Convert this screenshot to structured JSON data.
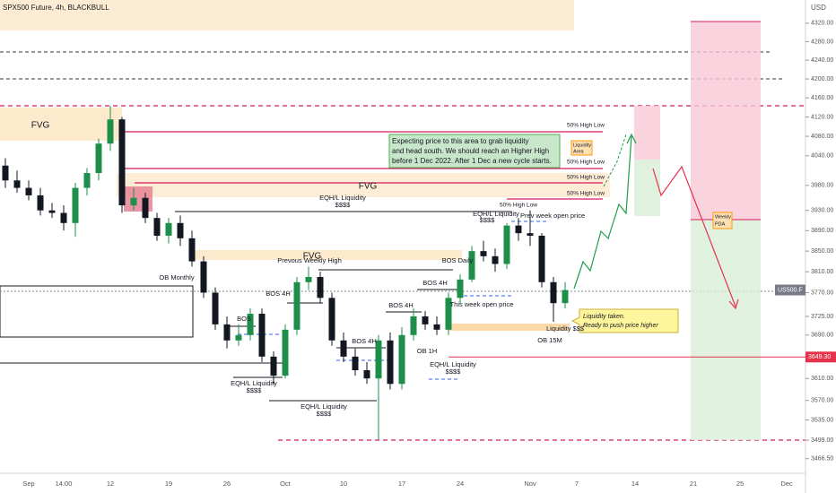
{
  "chart_data": {
    "type": "candlestick",
    "title": "SPX500 Future, 4h, BLACKBULL",
    "y_unit": "USD",
    "symbol_label": "US500.F",
    "log_scale": true,
    "up_color": "#1e8f4a",
    "down_color": "#131722",
    "categories": [
      null,
      null,
      "Sep",
      null,
      null,
      "14:00",
      null,
      null,
      null,
      "12",
      null,
      null,
      null,
      null,
      "19",
      null,
      null,
      null,
      null,
      "26",
      null,
      null,
      null,
      null,
      "Oct",
      null,
      null,
      null,
      null,
      "10",
      null,
      null,
      null,
      null,
      "17",
      null,
      null,
      null,
      null,
      "24",
      null,
      null,
      null,
      null,
      null,
      "Nov",
      null,
      null,
      null,
      "7",
      null,
      null,
      null,
      null,
      "14",
      null,
      null,
      null,
      null,
      "21",
      null,
      null,
      null,
      "25",
      null,
      null,
      null,
      "Dec",
      null
    ],
    "open": [
      4020,
      3990,
      3975,
      3960,
      3930,
      3925,
      3905,
      3975,
      4005,
      4065,
      4115,
      3940,
      3955,
      3915,
      3880,
      3905,
      3875,
      3830,
      3770,
      3710,
      3680,
      3690,
      3730,
      3650,
      3615,
      3700,
      3790,
      3800,
      3760,
      3680,
      3650,
      3625,
      3610,
      3680,
      3600,
      3690,
      3725,
      3710,
      3700,
      3760,
      3795,
      3850,
      3840,
      3825,
      3900,
      3885,
      3880,
      3790,
      3750,
      null,
      null,
      null,
      null,
      null,
      null,
      null,
      null,
      null,
      null,
      null,
      null,
      null,
      null,
      null,
      null,
      null,
      null,
      null,
      null
    ],
    "high": [
      4035,
      4010,
      3990,
      3975,
      3945,
      3940,
      3985,
      4015,
      4075,
      4143,
      4120,
      3975,
      3965,
      3925,
      3915,
      3920,
      3890,
      3840,
      3780,
      3725,
      3710,
      3740,
      3740,
      3660,
      3710,
      3800,
      3820,
      3810,
      3770,
      3695,
      3665,
      3640,
      3690,
      3695,
      3705,
      3740,
      3735,
      3725,
      3770,
      3805,
      3860,
      3870,
      3855,
      3905,
      3915,
      3930,
      3885,
      3800,
      3790,
      null,
      null,
      null,
      null,
      null,
      null,
      null,
      null,
      null,
      null,
      null,
      null,
      null,
      null,
      null,
      null,
      null,
      null,
      null,
      null
    ],
    "low": [
      3975,
      3965,
      3950,
      3920,
      3915,
      3890,
      3878,
      3960,
      3990,
      4050,
      3925,
      3930,
      3905,
      3870,
      3865,
      3860,
      3820,
      3760,
      3700,
      3665,
      3670,
      3680,
      3640,
      3600,
      3610,
      3690,
      3775,
      3750,
      3670,
      3640,
      3615,
      3600,
      3500,
      3590,
      3590,
      3680,
      3700,
      3690,
      3690,
      3750,
      3790,
      3830,
      3810,
      3815,
      3870,
      3860,
      3780,
      3715,
      3740,
      null,
      null,
      null,
      null,
      null,
      null,
      null,
      null,
      null,
      null,
      null,
      null,
      null,
      null,
      null,
      null,
      null,
      null,
      null,
      null
    ],
    "close": [
      3990,
      3975,
      3960,
      3930,
      3925,
      3905,
      3975,
      4005,
      4065,
      4115,
      3940,
      3955,
      3915,
      3880,
      3905,
      3875,
      3830,
      3770,
      3710,
      3680,
      3690,
      3730,
      3650,
      3615,
      3700,
      3790,
      3800,
      3760,
      3680,
      3650,
      3625,
      3610,
      3680,
      3600,
      3690,
      3725,
      3710,
      3700,
      3760,
      3795,
      3850,
      3840,
      3825,
      3900,
      3885,
      3880,
      3790,
      3750,
      3775,
      null,
      null,
      null,
      null,
      null,
      null,
      null,
      null,
      null,
      null,
      null,
      null,
      null,
      null,
      null,
      null,
      null,
      null,
      null,
      null
    ],
    "ylim": [
      3441,
      4371
    ],
    "yticks": [
      {
        "value": 4320,
        "label": "4320.00"
      },
      {
        "value": 4280,
        "label": "4280.00"
      },
      {
        "value": 4240,
        "label": "4240.00"
      },
      {
        "value": 4200,
        "label": "4200.00"
      },
      {
        "value": 4160,
        "label": "4160.00"
      },
      {
        "value": 4120,
        "label": "4120.00"
      },
      {
        "value": 4080,
        "label": "4080.00"
      },
      {
        "value": 4040,
        "label": "4040.00"
      },
      {
        "value": 3980,
        "label": "3980.00"
      },
      {
        "value": 3930,
        "label": "3930.00"
      },
      {
        "value": 3890,
        "label": "3890.00"
      },
      {
        "value": 3850,
        "label": "3850.00"
      },
      {
        "value": 3810,
        "label": "3810.00"
      },
      {
        "value": 3770,
        "label": "3770.00"
      },
      {
        "value": 3725,
        "label": "3725.00"
      },
      {
        "value": 3690,
        "label": "3690.00"
      },
      {
        "value": 3610,
        "label": "3610.00"
      },
      {
        "value": 3570,
        "label": "3570.00"
      },
      {
        "value": 3535,
        "label": "3535.00"
      },
      {
        "value": 3499,
        "label": "3499.00"
      },
      {
        "value": 3466.5,
        "label": "3466.50"
      }
    ],
    "price_line": {
      "value": 3649.3,
      "label": "3649.30"
    },
    "annotations": [
      "FVG",
      "FVG",
      "FVG",
      "50% High Low",
      "50% High Low",
      "50% High Low",
      "50% High Low",
      "50% High Low",
      "EQH/L  Liquidity",
      "$$$$",
      "EQH/L  Liquidity",
      "$$$$",
      "Prev week open price",
      "Prevous Weekly High",
      "BOS Daily",
      "OB Monthly",
      "BOS 4H",
      "BOS 4H",
      "BOS 4H",
      "This week open price",
      "BOS",
      "BOS 4H",
      "OB 1H",
      "EQH/L  Liquidity",
      "$$$$",
      "EQH/L  Liquidity",
      "$$$$",
      "EQH/L  Liquidity",
      "$$$$",
      "Liquidity $$$",
      "OB 15M"
    ],
    "note_main": [
      "Expecting price to this area to grab liquidity",
      "and head south. We should reach an Higher High",
      "before 1 Dec 2022. After 1 Dec a new cycle starts."
    ],
    "note_liquidity": [
      "Liquidity taken.",
      "Ready to push price higher"
    ],
    "liquidity_area": [
      "Liquidity",
      "Area"
    ],
    "weekly_pda": [
      "Weekly",
      "PDA"
    ]
  }
}
